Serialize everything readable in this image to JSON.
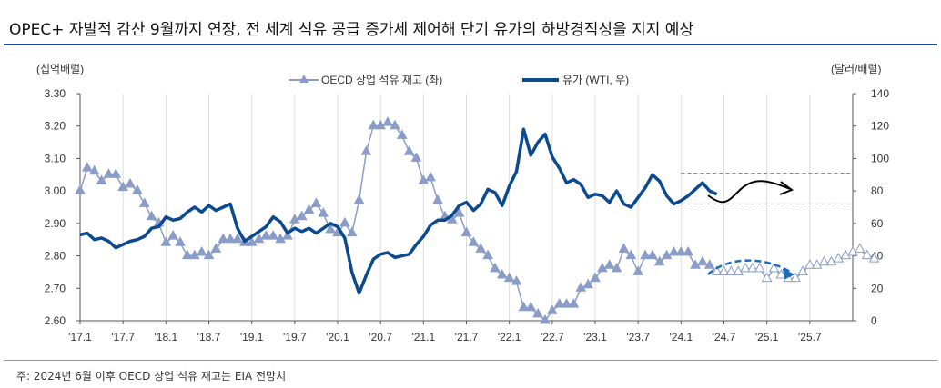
{
  "title": "OPEC+ 자발적 감산 9월까지 연장, 전 세계 석유 공급 증가세 제어해 단기 유가의 하방경직성을 지지 예상",
  "note": "주: 2024년 6월 이후 OECD 상업 석유 재고는 EIA 전망치",
  "chart_data": {
    "type": "line",
    "left_unit": "(십억배럴)",
    "right_unit": "(달러/배럴)",
    "x_ticks": [
      "'17.1",
      "'17.7",
      "'18.1",
      "'18.7",
      "'19.1",
      "'19.7",
      "'20.1",
      "'20.7",
      "'21.1",
      "'21.7",
      "'22.1",
      "'22.7",
      "'23.1",
      "'23.7",
      "'24.1",
      "'24.7",
      "'25.1",
      "'25.7"
    ],
    "y_left": {
      "min": 2.6,
      "max": 3.3,
      "ticks": [
        "2.60",
        "2.70",
        "2.80",
        "2.90",
        "3.00",
        "3.10",
        "3.20",
        "3.30"
      ]
    },
    "y_right": {
      "min": 0,
      "max": 140,
      "ticks": [
        "0",
        "20",
        "40",
        "60",
        "80",
        "100",
        "120",
        "140"
      ]
    },
    "x_start": "2017-01",
    "x_frequency": "monthly",
    "grid": "vertical",
    "legend_position": "top",
    "series": [
      {
        "name": "OECD 상업 석유 재고 (좌)",
        "axis": "left",
        "color": "#8a9cc8",
        "forecast_from": "2024-06",
        "values": [
          3.0,
          3.07,
          3.06,
          3.03,
          3.05,
          3.05,
          3.01,
          3.02,
          3.0,
          2.96,
          2.92,
          2.9,
          2.84,
          2.86,
          2.84,
          2.8,
          2.8,
          2.81,
          2.8,
          2.82,
          2.85,
          2.85,
          2.85,
          2.84,
          2.84,
          2.85,
          2.86,
          2.86,
          2.85,
          2.86,
          2.91,
          2.92,
          2.94,
          2.96,
          2.93,
          2.88,
          2.87,
          2.9,
          2.87,
          2.97,
          3.12,
          3.2,
          3.2,
          3.21,
          3.2,
          3.17,
          3.12,
          3.1,
          3.03,
          3.04,
          2.97,
          2.92,
          2.91,
          2.93,
          2.87,
          2.84,
          2.82,
          2.8,
          2.76,
          2.74,
          2.73,
          2.72,
          2.64,
          2.64,
          2.62,
          2.6,
          2.63,
          2.65,
          2.65,
          2.65,
          2.7,
          2.71,
          2.73,
          2.76,
          2.77,
          2.76,
          2.82,
          2.8,
          2.75,
          2.8,
          2.8,
          2.78,
          2.8,
          2.81,
          2.81,
          2.81,
          2.77,
          2.78,
          2.77,
          2.75,
          2.75,
          2.75,
          2.75,
          2.76,
          2.76,
          2.76,
          2.73,
          2.76,
          2.74,
          2.73,
          2.73,
          2.75,
          2.77,
          2.77,
          2.78,
          2.78,
          2.79,
          2.8,
          2.81,
          2.82,
          2.8,
          2.79
        ]
      },
      {
        "name": "유가 (WTI, 우)",
        "axis": "right",
        "color": "#0b4a8f",
        "values": [
          53,
          54,
          50,
          51,
          49,
          45,
          47,
          49,
          50,
          52,
          57,
          58,
          64,
          62,
          63,
          67,
          70,
          67,
          71,
          68,
          70,
          72,
          57,
          49,
          52,
          55,
          58,
          64,
          61,
          54,
          57,
          55,
          57,
          54,
          57,
          60,
          58,
          51,
          30,
          17,
          28,
          38,
          41,
          42,
          39,
          40,
          41,
          47,
          52,
          59,
          62,
          62,
          65,
          71,
          73,
          68,
          72,
          81,
          79,
          71,
          83,
          92,
          118,
          102,
          110,
          115,
          101,
          94,
          85,
          87,
          84,
          76,
          78,
          77,
          73,
          80,
          72,
          70,
          76,
          82,
          90,
          86,
          77,
          72,
          74,
          77,
          81,
          85,
          80,
          78
        ]
      }
    ],
    "annotations": {
      "range_band_usd": [
        72,
        91
      ],
      "range_from": "2024-01"
    }
  }
}
